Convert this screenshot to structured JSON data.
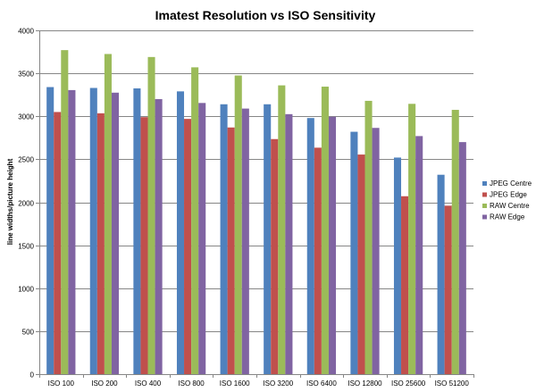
{
  "chart_data": {
    "type": "bar",
    "title": "Imatest Resolution vs ISO Sensitivity",
    "xlabel": "",
    "ylabel": "line widths/picture height",
    "ylim": [
      0,
      4000
    ],
    "yticks": [
      0,
      500,
      1000,
      1500,
      2000,
      2500,
      3000,
      3500,
      4000
    ],
    "grid": "horizontal",
    "legend_position": "right",
    "categories": [
      "ISO 100",
      "ISO 200",
      "ISO 400",
      "ISO 800",
      "ISO 1600",
      "ISO 3200",
      "ISO 6400",
      "ISO 12800",
      "ISO 25600",
      "ISO 51200"
    ],
    "series": [
      {
        "name": "JPEG Centre",
        "color": "#4F81BD",
        "values": [
          3340,
          3330,
          3325,
          3290,
          3140,
          3140,
          2980,
          2820,
          2520,
          2320
        ]
      },
      {
        "name": "JPEG Edge",
        "color": "#C0504D",
        "values": [
          3050,
          3035,
          2990,
          2970,
          2870,
          2735,
          2635,
          2555,
          2070,
          1960
        ]
      },
      {
        "name": "RAW Centre",
        "color": "#9BBB59",
        "values": [
          3770,
          3725,
          3690,
          3570,
          3475,
          3360,
          3345,
          3180,
          3145,
          3075
        ]
      },
      {
        "name": "RAW Edge",
        "color": "#8064A2",
        "values": [
          3305,
          3275,
          3200,
          3155,
          3090,
          3025,
          2995,
          2865,
          2770,
          2700
        ]
      }
    ]
  }
}
